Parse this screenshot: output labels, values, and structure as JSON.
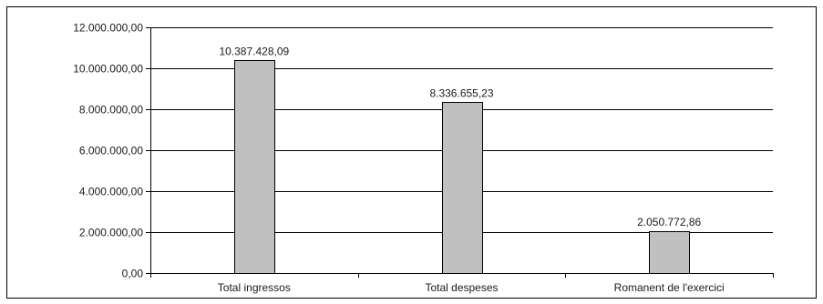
{
  "chart_data": {
    "type": "bar",
    "categories": [
      "Total ingressos",
      "Total despeses",
      "Romanent de l'exercici"
    ],
    "values": [
      10387428.09,
      8336655.23,
      2050772.86
    ],
    "value_labels": [
      "10.387.428,09",
      "8.336.655,23",
      "2.050.772,86"
    ],
    "title": "",
    "xlabel": "",
    "ylabel": "",
    "ylim": [
      0,
      12000000
    ],
    "yticks": [
      {
        "value": 0,
        "label": "0,00"
      },
      {
        "value": 2000000,
        "label": "2.000.000,00"
      },
      {
        "value": 4000000,
        "label": "4.000.000,00"
      },
      {
        "value": 6000000,
        "label": "6.000.000,00"
      },
      {
        "value": 8000000,
        "label": "8.000.000,00"
      },
      {
        "value": 10000000,
        "label": "10.000.000,00"
      },
      {
        "value": 12000000,
        "label": "12.000.000,00"
      }
    ],
    "grid": true,
    "legend": "none",
    "colors": {
      "bar_fill": "#c0c0c0",
      "bar_stroke": "#000000",
      "grid": "#000000",
      "frame": "#000000"
    }
  }
}
